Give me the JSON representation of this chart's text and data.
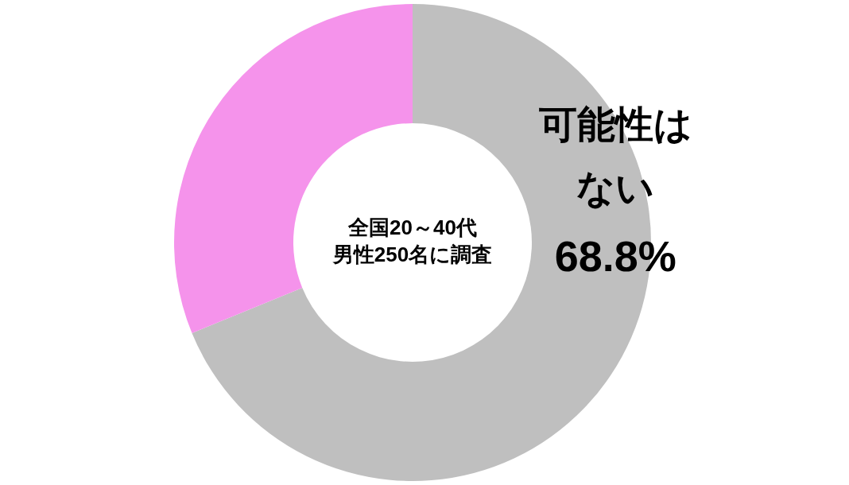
{
  "chart_data": {
    "type": "donut",
    "categories": [
      "可能性はない",
      null
    ],
    "values": [
      68.8,
      31.2
    ],
    "colors": [
      "#bfbfbf",
      "#f593eb"
    ],
    "value_labels": [
      "68.8%",
      null
    ],
    "annotations": [
      "全国20～40代",
      "男性250名に調査"
    ]
  }
}
